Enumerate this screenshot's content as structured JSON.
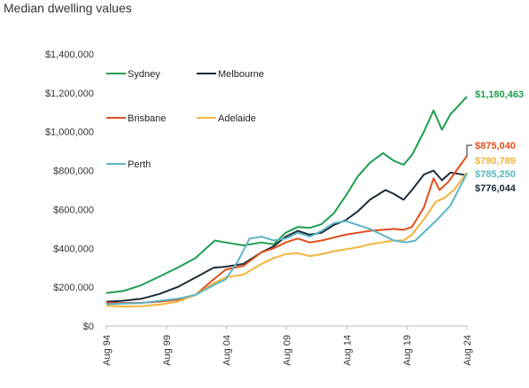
{
  "chart_data": {
    "type": "line",
    "title": "Median dwelling values",
    "xlabel": "",
    "ylabel": "",
    "x_ticks": [
      "Aug 94",
      "Aug 99",
      "Aug 04",
      "Aug 09",
      "Aug 14",
      "Aug 19",
      "Aug 24"
    ],
    "y_ticks": [
      "$0",
      "$200,000",
      "$400,000",
      "$600,000",
      "$800,000",
      "$1,000,000",
      "$1,200,000",
      "$1,400,000"
    ],
    "ylim": [
      0,
      1400000
    ],
    "xlim": [
      1994.58,
      2024.58
    ],
    "grid": false,
    "legend_position": "top-left",
    "series": [
      {
        "name": "Sydney",
        "color": "#1e9e50",
        "end_label": "$1,180,463",
        "x": [
          1994.58,
          1996,
          1997.5,
          1999,
          2000.5,
          2002,
          2003.6,
          2004.5,
          2006,
          2007.5,
          2008.5,
          2009.5,
          2010.5,
          2011.5,
          2012.5,
          2013.5,
          2014.5,
          2015.5,
          2016.5,
          2017.6,
          2018.5,
          2019.3,
          2020,
          2021,
          2021.8,
          2022.5,
          2023.2,
          2024.58
        ],
        "y": [
          170000,
          180000,
          210000,
          255000,
          300000,
          350000,
          440000,
          430000,
          415000,
          430000,
          420000,
          480000,
          510000,
          505000,
          525000,
          580000,
          670000,
          770000,
          840000,
          890000,
          850000,
          830000,
          880000,
          1000000,
          1110000,
          1010000,
          1090000,
          1180463
        ]
      },
      {
        "name": "Melbourne",
        "color": "#1c2b36",
        "end_label": "$776,044",
        "x": [
          1994.58,
          1996,
          1997.5,
          1999,
          2000.5,
          2002,
          2003.5,
          2004.5,
          2006,
          2007.5,
          2008.5,
          2009.5,
          2010.5,
          2011.5,
          2012.5,
          2013.5,
          2014.5,
          2015.5,
          2016.5,
          2017.8,
          2018.5,
          2019.3,
          2020,
          2021,
          2021.8,
          2022.5,
          2023.2,
          2024.58
        ],
        "y": [
          125000,
          130000,
          140000,
          165000,
          200000,
          250000,
          300000,
          305000,
          320000,
          380000,
          410000,
          460000,
          490000,
          470000,
          480000,
          520000,
          545000,
          590000,
          650000,
          700000,
          680000,
          650000,
          700000,
          780000,
          800000,
          750000,
          790000,
          776044
        ]
      },
      {
        "name": "Brisbane",
        "color": "#e04e1b",
        "end_label": "$875,040",
        "x": [
          1994.58,
          1996,
          1997.5,
          1999,
          2000.5,
          2002,
          2003.5,
          2004.5,
          2006,
          2007.5,
          2008.5,
          2009.5,
          2010.5,
          2011.5,
          2012.5,
          2013.5,
          2014.5,
          2015.5,
          2016.5,
          2017.5,
          2018.5,
          2019.3,
          2020,
          2021,
          2021.8,
          2022.3,
          2023,
          2024.58
        ],
        "y": [
          120000,
          118000,
          120000,
          125000,
          135000,
          160000,
          240000,
          290000,
          310000,
          380000,
          400000,
          430000,
          450000,
          430000,
          440000,
          455000,
          470000,
          480000,
          490000,
          495000,
          500000,
          495000,
          510000,
          610000,
          760000,
          700000,
          740000,
          875040
        ]
      },
      {
        "name": "Adelaide",
        "color": "#f2b43e",
        "end_label": "$790,789",
        "x": [
          1994.58,
          1996,
          1997.5,
          1999,
          2000.5,
          2002,
          2003.5,
          2004.5,
          2006,
          2007.5,
          2008.5,
          2009.5,
          2010.5,
          2011.5,
          2012.5,
          2013.5,
          2014.5,
          2015.5,
          2016.5,
          2017.5,
          2018.5,
          2019.3,
          2020,
          2021,
          2022,
          2022.7,
          2023.5,
          2024.58
        ],
        "y": [
          105000,
          100000,
          102000,
          110000,
          125000,
          160000,
          220000,
          250000,
          265000,
          320000,
          350000,
          370000,
          375000,
          360000,
          370000,
          385000,
          395000,
          405000,
          420000,
          430000,
          440000,
          440000,
          470000,
          550000,
          640000,
          660000,
          700000,
          790789
        ]
      },
      {
        "name": "Perth",
        "color": "#5bb5c4",
        "end_label": "$785,250",
        "x": [
          1994.58,
          1996,
          1997.5,
          1999,
          2000.5,
          2002,
          2003.5,
          2004.5,
          2005.5,
          2006.5,
          2007.5,
          2008.5,
          2009.5,
          2010.5,
          2011.5,
          2012.5,
          2013.5,
          2014.5,
          2015.5,
          2016.5,
          2017.5,
          2018.5,
          2019.5,
          2020.3,
          2021.3,
          2022.3,
          2023.2,
          2024.58
        ],
        "y": [
          112000,
          115000,
          118000,
          130000,
          140000,
          160000,
          210000,
          240000,
          330000,
          450000,
          460000,
          440000,
          450000,
          480000,
          460000,
          490000,
          530000,
          540000,
          520000,
          500000,
          470000,
          440000,
          430000,
          440000,
          500000,
          560000,
          620000,
          785250
        ]
      }
    ]
  }
}
